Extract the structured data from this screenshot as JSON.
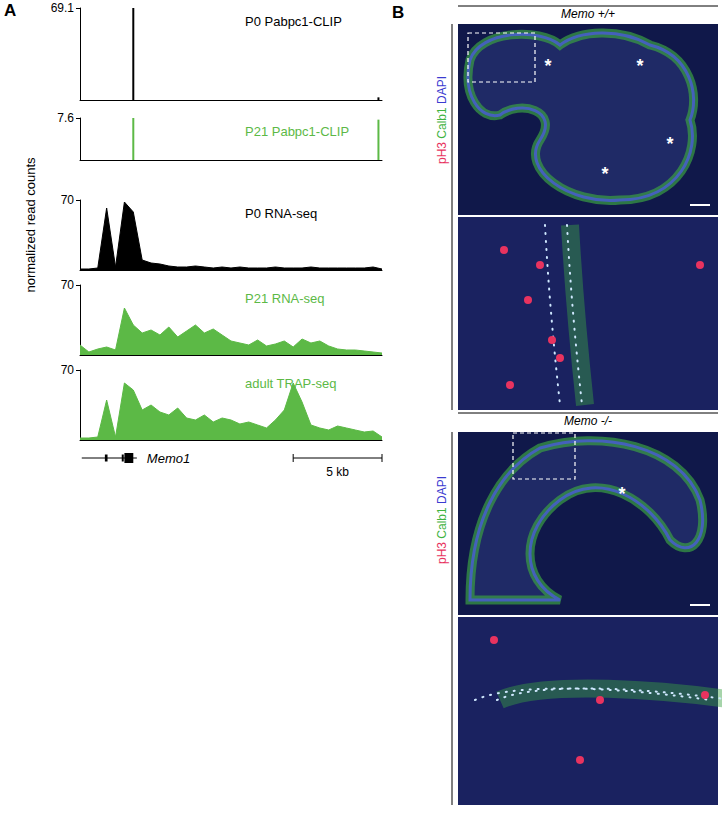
{
  "chart_data": [
    {
      "type": "bar",
      "title": "P0 Pabpc1-CLIP",
      "color": "#000000",
      "x": [
        3.0,
        16.8
      ],
      "values": [
        69.1,
        2
      ],
      "xlim": [
        0,
        17
      ],
      "ylim": [
        0,
        69.1
      ],
      "yticks": [
        69.1
      ],
      "grid": false,
      "tick_labels": "y"
    },
    {
      "type": "bar",
      "title": "P21 Pabpc1-CLIP",
      "color": "#5cb946",
      "x": [
        3.0,
        16.8
      ],
      "values": [
        7.6,
        7.3
      ],
      "xlim": [
        0,
        17
      ],
      "ylim": [
        0,
        7.6
      ],
      "yticks": [
        7.6
      ],
      "grid": false,
      "tick_labels": "y"
    },
    {
      "type": "area",
      "title": "P0 RNA-seq",
      "color": "#000000",
      "x": [
        0,
        0.5,
        1,
        1.5,
        2,
        2.5,
        3,
        3.5,
        4,
        4.5,
        5,
        5.5,
        6,
        6.5,
        7,
        7.5,
        8,
        8.5,
        9,
        9.5,
        10,
        10.5,
        11,
        11.5,
        12,
        12.5,
        13,
        13.5,
        14,
        14.5,
        15,
        15.5,
        16,
        16.5,
        17
      ],
      "values": [
        1,
        1,
        2,
        62,
        3,
        68,
        58,
        10,
        7,
        6,
        4,
        3,
        3,
        4,
        3,
        2,
        3,
        2,
        3,
        2,
        2,
        2,
        3,
        2,
        2,
        2,
        3,
        2,
        2,
        2,
        2,
        2,
        2,
        3,
        1
      ],
      "xlim": [
        0,
        17
      ],
      "ylim": [
        0,
        70
      ],
      "yticks": [
        70
      ],
      "grid": false,
      "tick_labels": "y"
    },
    {
      "type": "area",
      "title": "P21 RNA-seq",
      "color": "#5cb946",
      "x": [
        0,
        0.5,
        1,
        1.5,
        2,
        2.5,
        3,
        3.5,
        4,
        4.5,
        5,
        5.5,
        6,
        6.5,
        7,
        7.5,
        8,
        8.5,
        9,
        9.5,
        10,
        10.5,
        11,
        11.5,
        12,
        12.5,
        13,
        13.5,
        14,
        14.5,
        15,
        15.5,
        16,
        16.5,
        17
      ],
      "values": [
        10,
        3,
        6,
        8,
        5,
        47,
        30,
        22,
        25,
        20,
        28,
        18,
        24,
        30,
        22,
        26,
        20,
        14,
        12,
        10,
        15,
        9,
        11,
        14,
        8,
        16,
        12,
        14,
        9,
        6,
        5,
        5,
        4,
        3,
        2
      ],
      "xlim": [
        0,
        17
      ],
      "ylim": [
        0,
        70
      ],
      "yticks": [
        70
      ],
      "grid": false,
      "tick_labels": "y"
    },
    {
      "type": "area",
      "title": "adult TRAP-seq",
      "color": "#5cb946",
      "x": [
        0,
        0.5,
        1,
        1.5,
        2,
        2.5,
        3,
        3.5,
        4,
        4.5,
        5,
        5.5,
        6,
        6.5,
        7,
        7.5,
        8,
        8.5,
        9,
        9.5,
        10,
        10.5,
        11,
        11.5,
        12,
        12.5,
        13,
        13.5,
        14,
        14.5,
        15,
        15.5,
        16,
        16.5,
        17
      ],
      "values": [
        2,
        2,
        3,
        40,
        3,
        57,
        50,
        30,
        35,
        28,
        25,
        32,
        22,
        20,
        25,
        18,
        22,
        20,
        16,
        18,
        15,
        12,
        20,
        30,
        57,
        38,
        15,
        12,
        10,
        14,
        12,
        10,
        8,
        9,
        3
      ],
      "xlim": [
        0,
        17
      ],
      "ylim": [
        0,
        70
      ],
      "yticks": [
        70
      ],
      "grid": false,
      "tick_labels": "y"
    }
  ],
  "figure": {
    "panel_A": {
      "label": "A",
      "y_label": "normalized read counts",
      "gene": {
        "name": "Memo1",
        "start": 0.1,
        "end": 3.2,
        "exons": [
          [
            1.4,
            1.55
          ],
          [
            2.35,
            2.45
          ],
          [
            2.5,
            3.0
          ]
        ]
      },
      "scale_bar": {
        "length": 5,
        "label": "5 kb"
      }
    },
    "panel_B": {
      "label": "B",
      "stains": [
        {
          "text": "pH3",
          "color": "#e8335f"
        },
        {
          "text": "Calb1",
          "color": "#3fb33f"
        },
        {
          "text": "DAPI",
          "color": "#3b3bd0"
        }
      ],
      "sections": [
        {
          "genotype": "Memo +/+",
          "asterisk": "*",
          "asterisk_count": 4
        },
        {
          "genotype": "Memo -/-",
          "asterisk": "*",
          "asterisk_count": 1
        }
      ]
    }
  }
}
